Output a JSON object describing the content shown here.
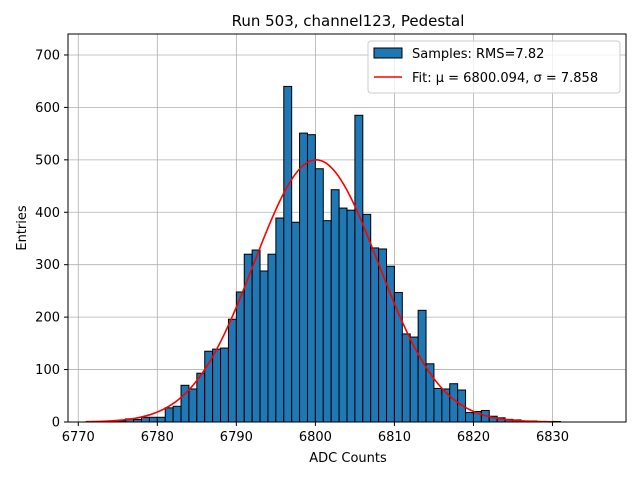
{
  "chart_data": {
    "type": "bar",
    "title": "Run 503, channel123, Pedestal",
    "xlabel": "ADC Counts",
    "ylabel": "Entries",
    "xlim": [
      6768.7,
      6839.3
    ],
    "ylim": [
      0,
      740
    ],
    "xticks": [
      6770,
      6780,
      6790,
      6800,
      6810,
      6820,
      6830
    ],
    "yticks": [
      0,
      100,
      200,
      300,
      400,
      500,
      600,
      700
    ],
    "grid": true,
    "legend_position": "top-right",
    "histogram": {
      "name": "Samples: RMS=7.82",
      "bin_width": 1,
      "bin_start": 6771,
      "counts": [
        1,
        0,
        0,
        1,
        2,
        6,
        5,
        9,
        9,
        9,
        27,
        30,
        70,
        63,
        93,
        135,
        139,
        141,
        196,
        248,
        320,
        328,
        288,
        320,
        389,
        640,
        381,
        551,
        548,
        483,
        384,
        443,
        408,
        404,
        585,
        396,
        332,
        330,
        297,
        247,
        168,
        162,
        213,
        111,
        64,
        63,
        73,
        61,
        18,
        20,
        22,
        11,
        8,
        5,
        4,
        2,
        2,
        1,
        1,
        1,
        0,
        0,
        0,
        0,
        0,
        0
      ],
      "fill_color": "#1f77b4",
      "edge_color": "#000000"
    },
    "fit": {
      "name": "Fit: μ = 6800.094, σ = 7.858",
      "mu": 6800.094,
      "sigma": 7.858,
      "amplitude": 500,
      "x_range": [
        6771,
        6830
      ],
      "color": "#ff0000"
    }
  }
}
